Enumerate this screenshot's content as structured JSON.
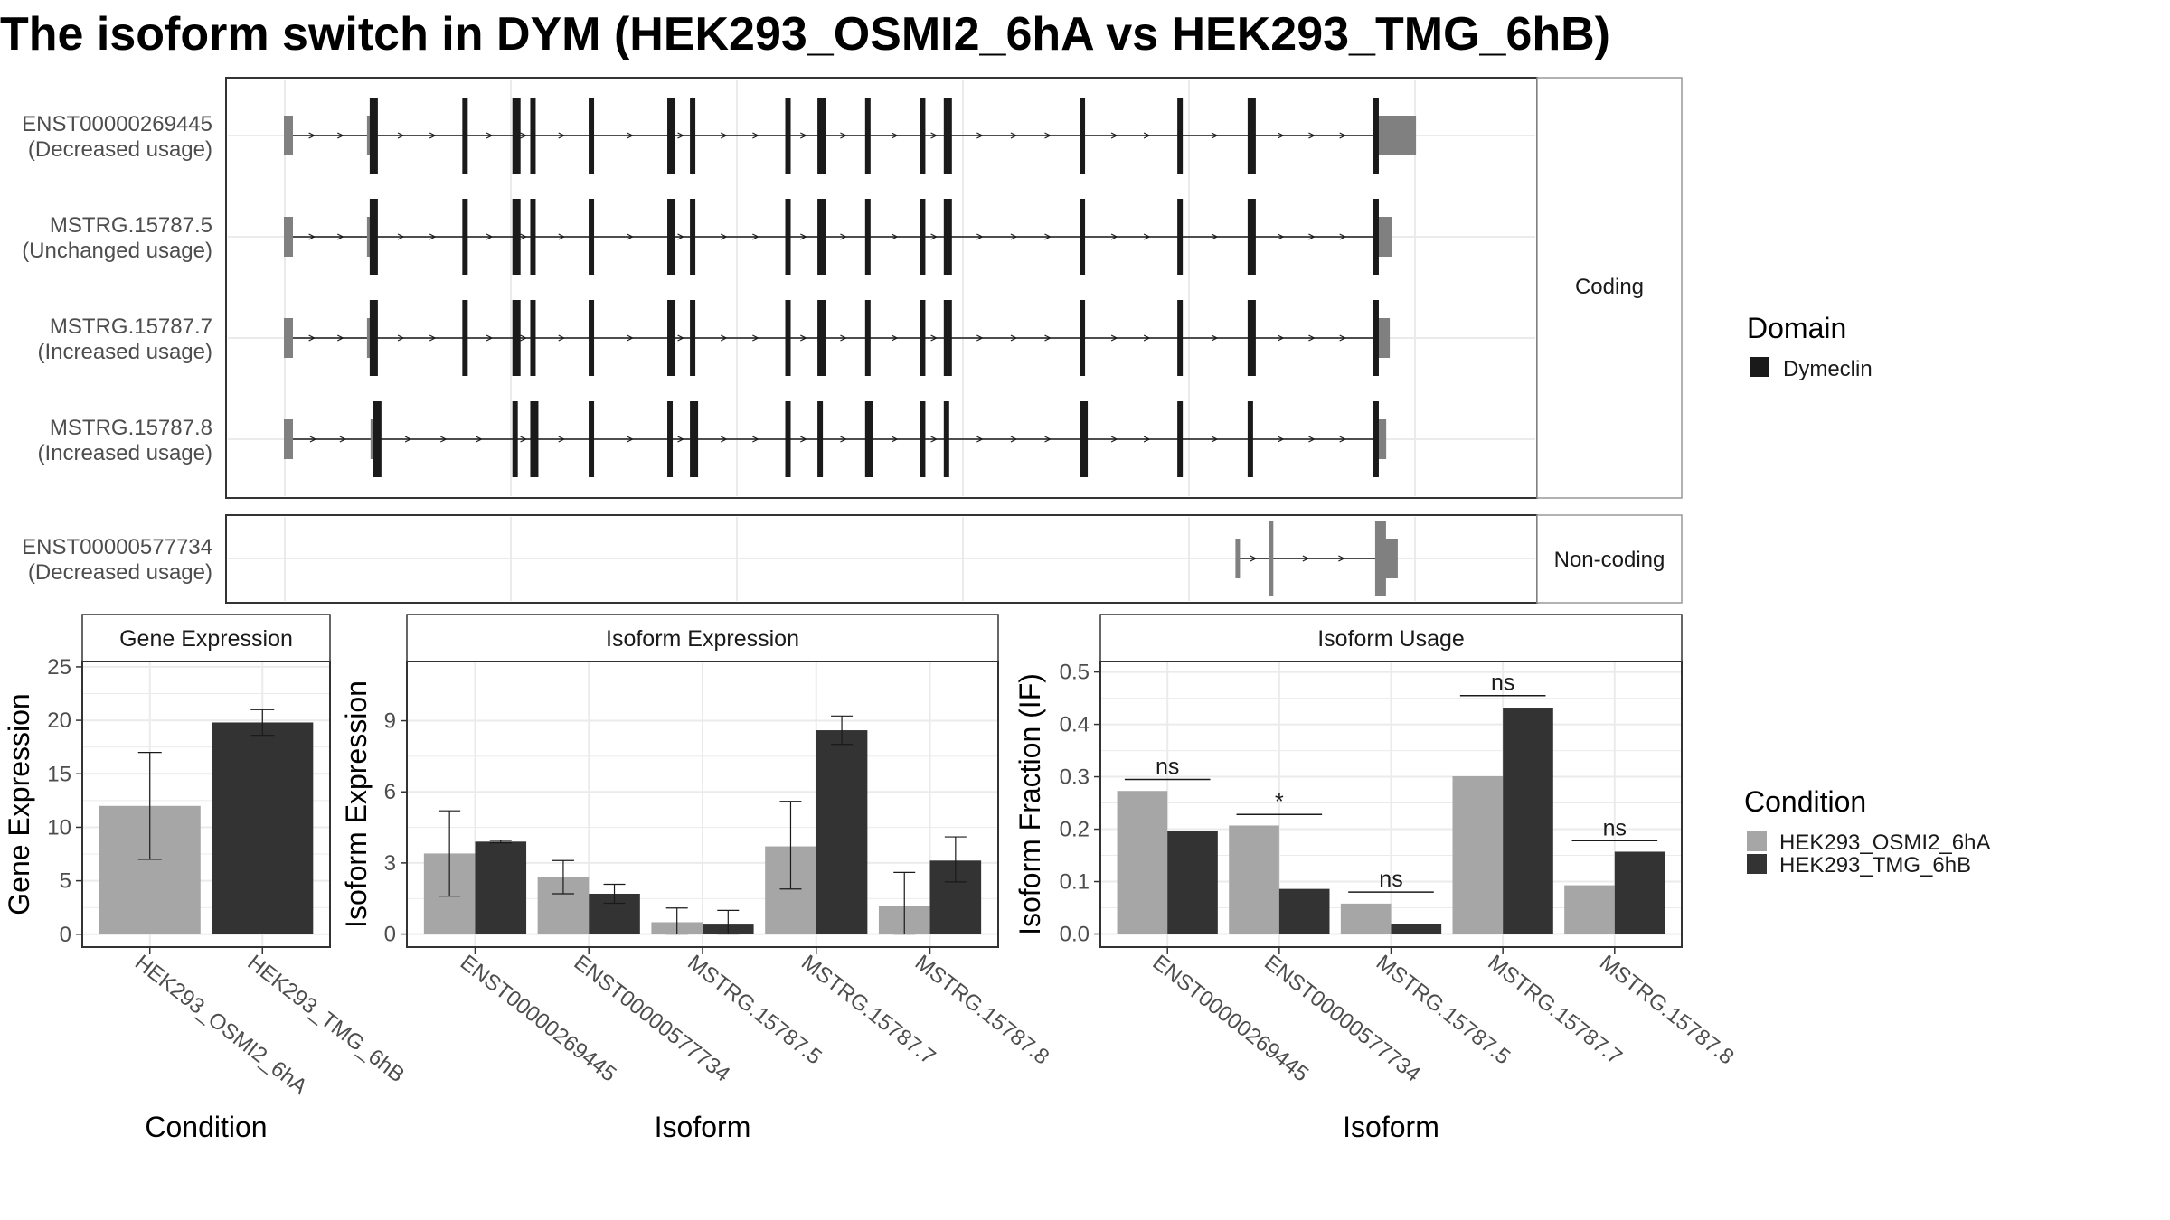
{
  "title": "The isoform switch in DYM (HEK293_OSMI2_6hA vs HEK293_TMG_6hB)",
  "colors": {
    "utr": "#808080",
    "cds": "#1a1a1a",
    "cond_a": "#a6a6a6",
    "cond_b": "#333333",
    "grid": "#ebebeb",
    "strip": "#ffffff",
    "frame": "#333333"
  },
  "structure": {
    "coding_label": "Coding",
    "noncoding_label": "Non-coding",
    "transcripts": [
      {
        "id": "ENST00000269445",
        "usage": "(Decreased usage)",
        "group": "coding",
        "tx_start": 0.0,
        "tx_end": 1.0,
        "utr5": [
          0.0,
          0.008
        ],
        "utr3": [
          0.915,
          0.95
        ],
        "cds_start": 0.072,
        "cds_end": 0.915,
        "exons": [
          0.0,
          0.072,
          0.152,
          0.194,
          0.209,
          0.258,
          0.324,
          0.343,
          0.423,
          0.45,
          0.49,
          0.536,
          0.556,
          0.67,
          0.752,
          0.811,
          0.915
        ]
      },
      {
        "id": "MSTRG.15787.5",
        "usage": "(Unchanged usage)",
        "group": "coding",
        "tx_start": 0.0,
        "tx_end": 1.0,
        "utr5": [
          0.0,
          0.008
        ],
        "utr3": [
          0.915,
          0.93
        ],
        "cds_start": 0.072,
        "cds_end": 0.915,
        "exons": [
          0.0,
          0.072,
          0.152,
          0.194,
          0.209,
          0.258,
          0.324,
          0.343,
          0.423,
          0.45,
          0.49,
          0.536,
          0.556,
          0.67,
          0.752,
          0.811,
          0.915
        ]
      },
      {
        "id": "MSTRG.15787.7",
        "usage": "(Increased usage)",
        "group": "coding",
        "tx_start": 0.0,
        "tx_end": 1.0,
        "utr5": [
          0.0,
          0.008
        ],
        "utr3": [
          0.915,
          0.928
        ],
        "cds_start": 0.072,
        "cds_end": 0.915,
        "exons": [
          0.0,
          0.072,
          0.152,
          0.194,
          0.209,
          0.258,
          0.324,
          0.343,
          0.423,
          0.45,
          0.49,
          0.536,
          0.556,
          0.67,
          0.752,
          0.811,
          0.915
        ]
      },
      {
        "id": "MSTRG.15787.8",
        "usage": "(Increased usage)",
        "group": "coding",
        "tx_start": 0.0,
        "tx_end": 1.0,
        "utr5": [
          0.0,
          0.008
        ],
        "utr3": [
          0.915,
          0.925
        ],
        "cds_start": 0.075,
        "cds_end": 0.915,
        "exons": [
          0.0,
          0.075,
          0.194,
          0.209,
          0.258,
          0.324,
          0.343,
          0.423,
          0.45,
          0.49,
          0.536,
          0.556,
          0.67,
          0.752,
          0.811,
          0.915
        ]
      },
      {
        "id": "ENST00000577734",
        "usage": "(Decreased usage)",
        "group": "noncoding",
        "tx_start": 0.8,
        "tx_end": 0.935,
        "exons": [
          0.8,
          0.828,
          0.918
        ]
      }
    ]
  },
  "legend_domain": {
    "title": "Domain",
    "items": [
      "Dymeclin"
    ]
  },
  "legend_condition": {
    "title": "Condition",
    "items": [
      "HEK293_OSMI2_6hA",
      "HEK293_TMG_6hB"
    ]
  },
  "chart_data": [
    {
      "type": "bar",
      "title": "Gene Expression",
      "xlabel": "Condition",
      "ylabel": "Gene Expression",
      "categories": [
        "HEK293_OSMI2_6hA",
        "HEK293_TMG_6hB"
      ],
      "values": [
        12.0,
        19.8
      ],
      "error_low": [
        7.0,
        18.6
      ],
      "error_high": [
        17.0,
        21.0
      ],
      "ylim": [
        -1.2,
        25.5
      ],
      "yticks": [
        0,
        5,
        10,
        15,
        20,
        25
      ],
      "grid": true
    },
    {
      "type": "bar",
      "title": "Isoform Expression",
      "xlabel": "Isoform",
      "ylabel": "Isoform Expression",
      "categories": [
        "ENST00000269445",
        "ENST00000577734",
        "MSTRG.15787.5",
        "MSTRG.15787.7",
        "MSTRG.15787.8"
      ],
      "series": [
        {
          "name": "HEK293_OSMI2_6hA",
          "values": [
            3.4,
            2.4,
            0.5,
            3.7,
            1.2
          ],
          "error_low": [
            1.6,
            1.7,
            0.0,
            1.9,
            0.0
          ],
          "error_high": [
            5.2,
            3.1,
            1.1,
            5.6,
            2.6
          ]
        },
        {
          "name": "HEK293_TMG_6hB",
          "values": [
            3.9,
            1.7,
            0.4,
            8.6,
            3.1
          ],
          "error_low": [
            3.85,
            1.3,
            0.0,
            8.0,
            2.2
          ],
          "error_high": [
            3.95,
            2.1,
            1.0,
            9.2,
            4.1
          ]
        }
      ],
      "ylim": [
        -0.55,
        11.5
      ],
      "yticks": [
        0,
        3,
        6,
        9
      ],
      "grid": true
    },
    {
      "type": "bar",
      "title": "Isoform Usage",
      "xlabel": "Isoform",
      "ylabel": "Isoform Fraction (IF)",
      "categories": [
        "ENST00000269445",
        "ENST00000577734",
        "MSTRG.15787.5",
        "MSTRG.15787.7",
        "MSTRG.15787.8"
      ],
      "series": [
        {
          "name": "HEK293_OSMI2_6hA",
          "values": [
            0.273,
            0.207,
            0.058,
            0.301,
            0.093
          ]
        },
        {
          "name": "HEK293_TMG_6hB",
          "values": [
            0.196,
            0.086,
            0.019,
            0.432,
            0.157
          ]
        }
      ],
      "significance": [
        "ns",
        "*",
        "ns",
        "ns",
        "ns"
      ],
      "sig_y": [
        0.295,
        0.228,
        0.08,
        0.455,
        0.178
      ],
      "ylim": [
        -0.025,
        0.52
      ],
      "yticks": [
        "0.0",
        "0.1",
        "0.2",
        "0.3",
        "0.4",
        "0.5"
      ],
      "ytick_values": [
        0,
        0.1,
        0.2,
        0.3,
        0.4,
        0.5
      ],
      "grid": true
    }
  ]
}
